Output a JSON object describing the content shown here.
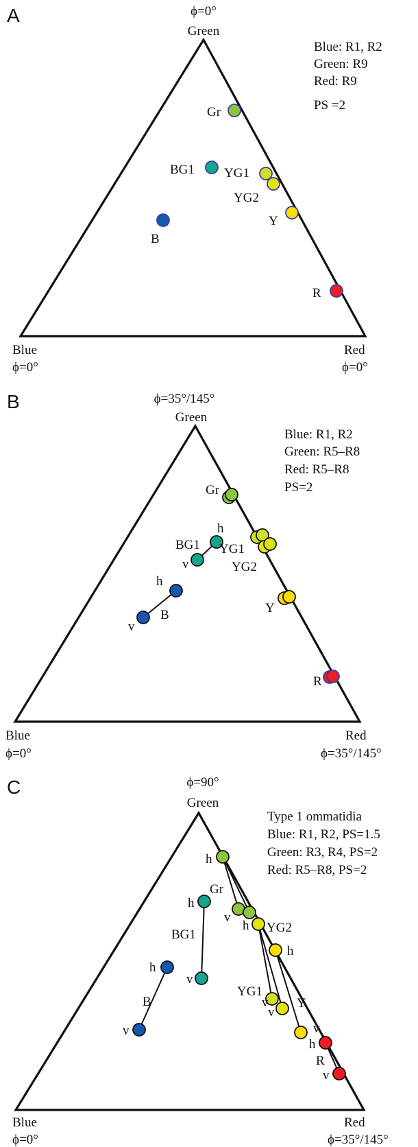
{
  "colors": {
    "Gr": "#8cc63f",
    "BG1": "#16a58f",
    "YG1": "#cfe02a",
    "YG2": "#e1e313",
    "Y": "#ffdd00",
    "R": "#ee1c24",
    "B": "#1558b0",
    "ring": "#3d3d9e",
    "dark": "#111111"
  },
  "panels": [
    {
      "letter": "A",
      "vertex_labels": {
        "green_phi": "ϕ=0°",
        "green": "Green",
        "blue": "Blue",
        "blue_phi": "ϕ=0°",
        "red": "Red",
        "red_phi": "ϕ=0°"
      },
      "legend": [
        "Blue: R1, R2",
        "Green: R9",
        "Red: R9",
        "PS =2"
      ],
      "points": [
        {
          "label": "Gr",
          "color": "Gr"
        },
        {
          "label": "BG1",
          "color": "BG1"
        },
        {
          "label": "YG1",
          "color": "YG1"
        },
        {
          "label": "YG2",
          "color": "YG2"
        },
        {
          "label": "Y",
          "color": "Y"
        },
        {
          "label": "B",
          "color": "B"
        },
        {
          "label": "R",
          "color": "R"
        }
      ]
    },
    {
      "letter": "B",
      "vertex_labels": {
        "green_phi": "ϕ=35°/145°",
        "green": "Green",
        "blue": "Blue",
        "blue_phi": "ϕ=0°",
        "red": "Red",
        "red_phi": "ϕ=35°/145°"
      },
      "legend": [
        "Blue: R1, R2",
        "Green: R5–R8",
        "Red: R5–R8",
        "PS=2"
      ],
      "points": [
        {
          "label": "Gr",
          "color": "Gr"
        },
        {
          "label": "BG1",
          "color": "BG1",
          "h": "h",
          "v": "v"
        },
        {
          "label": "YG1",
          "color": "YG1"
        },
        {
          "label": "YG2",
          "color": "YG2"
        },
        {
          "label": "Y",
          "color": "Y"
        },
        {
          "label": "B",
          "color": "B",
          "h": "h",
          "v": "v"
        },
        {
          "label": "R",
          "color": "R"
        }
      ]
    },
    {
      "letter": "C",
      "vertex_labels": {
        "green_phi": "ϕ=90°",
        "green": "Green",
        "blue": "Blue",
        "blue_phi": "ϕ=0°",
        "red": "Red",
        "red_phi": "ϕ=35°/145°"
      },
      "legend": [
        "Type  1 ommatidia",
        "Blue: R1, R2, PS=1.5",
        "Green: R3, R4, PS=2",
        "Red: R5–R8, PS=2"
      ],
      "points": [
        {
          "label": "Gr",
          "color": "Gr",
          "h": "h",
          "v": "v"
        },
        {
          "label": "BG1",
          "color": "BG1",
          "h": "h",
          "v": "v"
        },
        {
          "label": "YG2",
          "color": "YG2",
          "h": "h",
          "v": "v"
        },
        {
          "label": "YG1",
          "color": "YG1"
        },
        {
          "label": "Y",
          "color": "Y",
          "h": "h",
          "v": "v"
        },
        {
          "label": "B",
          "color": "B",
          "h": "h",
          "v": "v"
        },
        {
          "label": "R",
          "color": "R",
          "h": "h",
          "v": "v"
        }
      ]
    }
  ]
}
